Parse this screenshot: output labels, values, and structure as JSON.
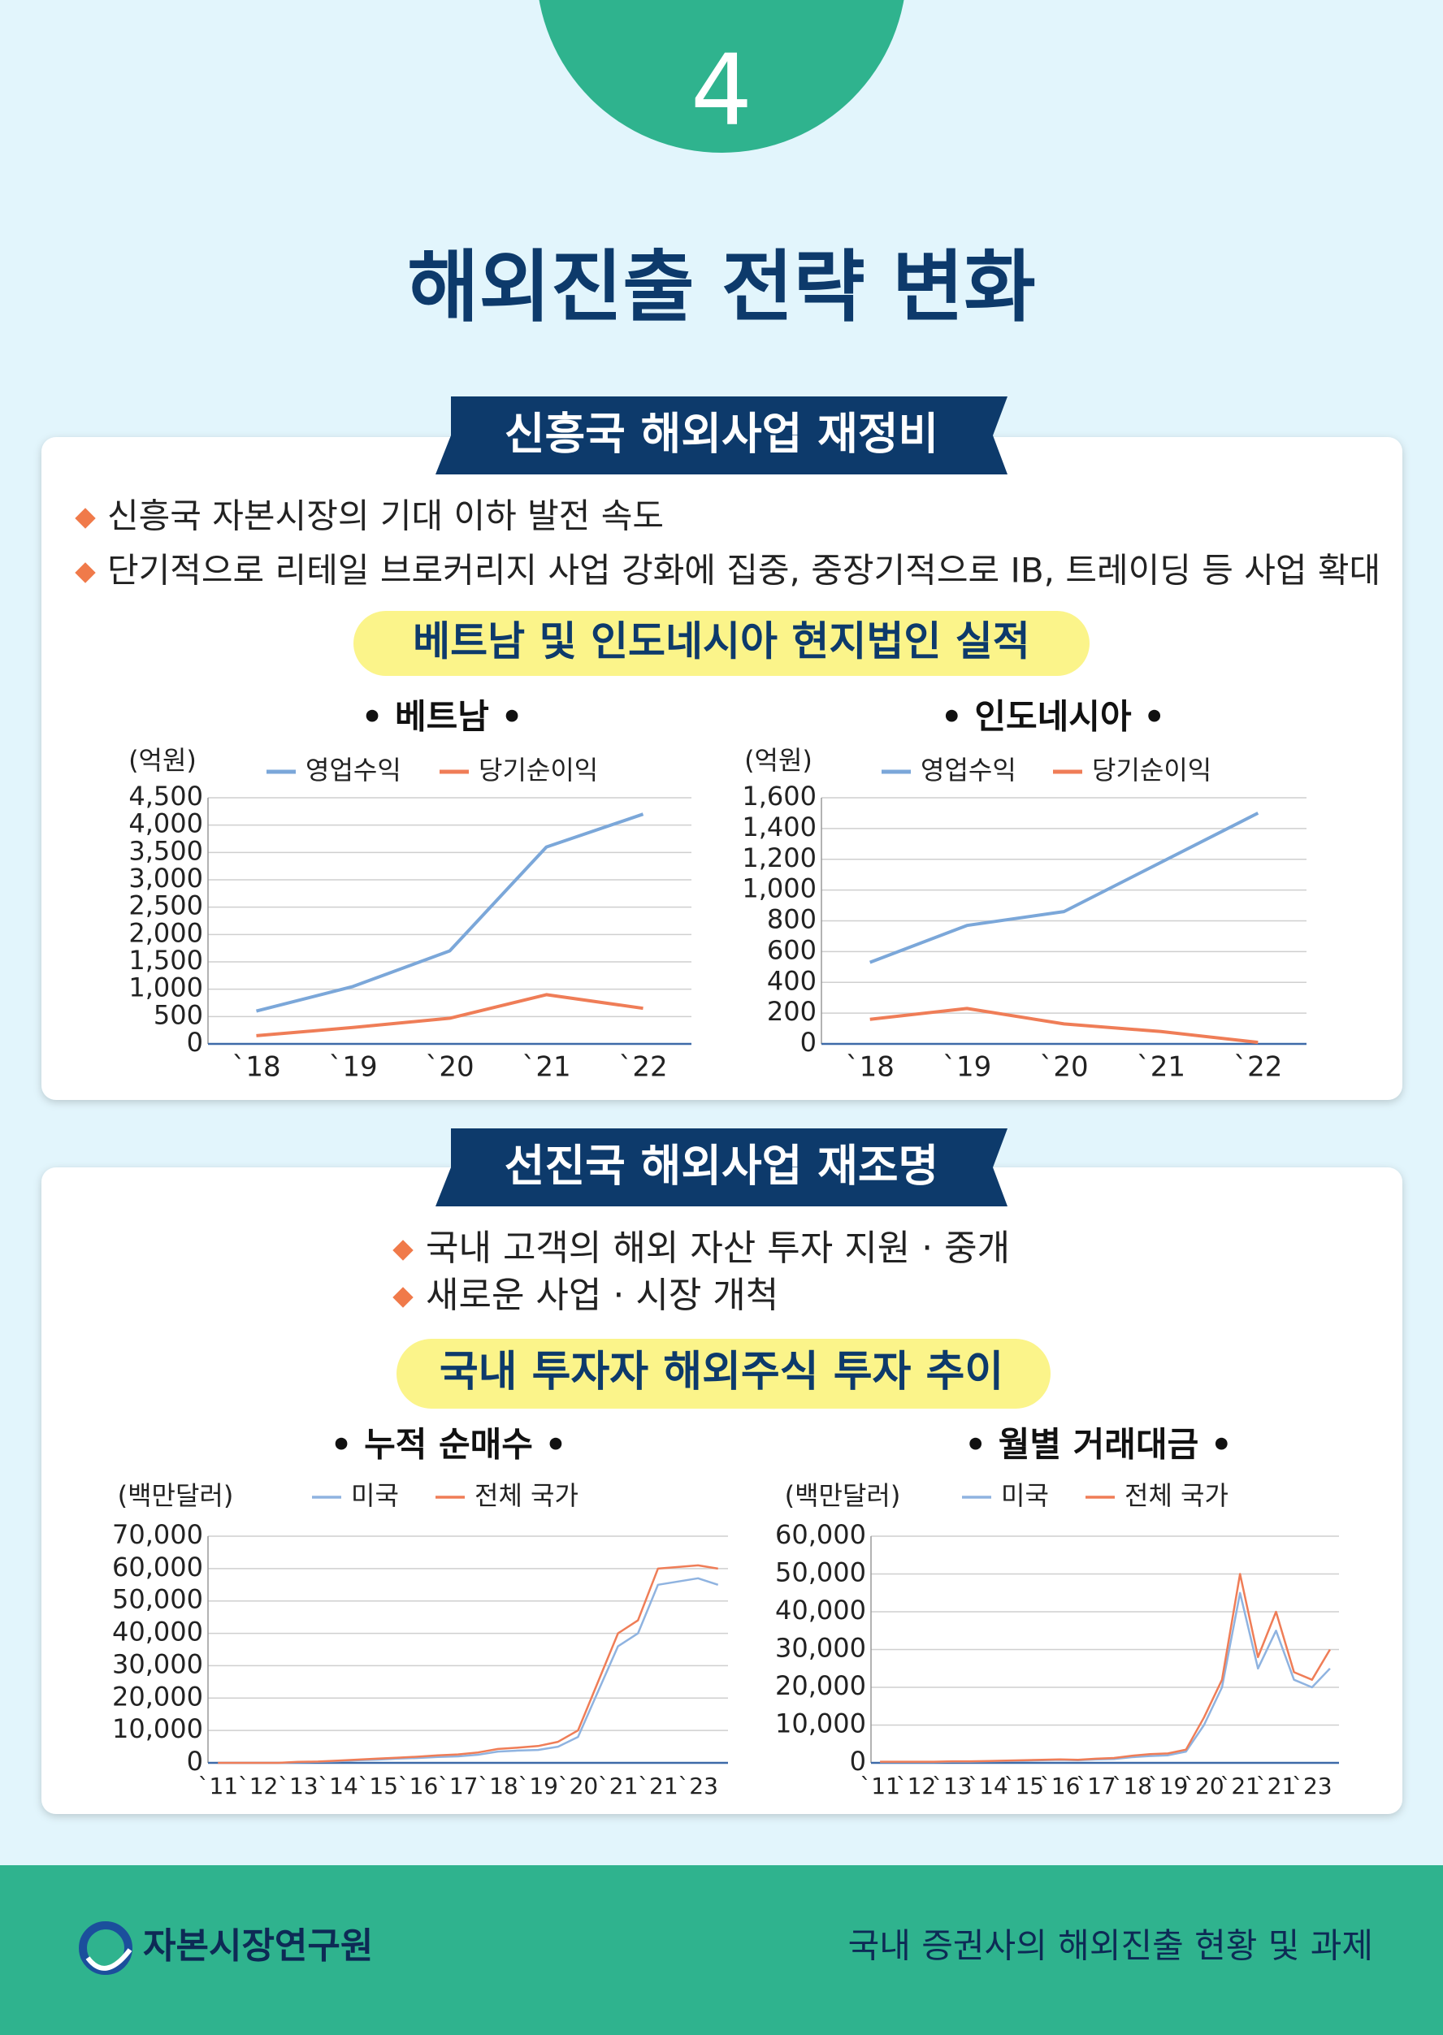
{
  "header": {
    "number": "4",
    "title": "해외진출 전략 변화"
  },
  "sections": [
    {
      "heading": "신흥국 해외사업 재정비",
      "bullets": [
        "신흥국 자본시장의 기대 이하 발전 속도",
        "단기적으로 리테일 브로커리지 사업 강화에 집중, 중장기적으로 IB, 트레이딩 등 사업 확대"
      ],
      "subheading": "베트남 및 인도네시아 현지법인 실적"
    },
    {
      "heading": "선진국 해외사업 재조명",
      "bullets": [
        "국내 고객의 해외 자산 투자 지원 · 중개",
        "새로운 사업 · 시장 개척"
      ],
      "subheading": "국내 투자자 해외주식 투자 추이"
    }
  ],
  "chart_data": [
    {
      "type": "line",
      "title": "• 베트남 •",
      "y_label": "(억원)",
      "categories": [
        "`18",
        "`19",
        "`20",
        "`21",
        "`22"
      ],
      "series": [
        {
          "name": "영업수익",
          "color": "#7ba7d9",
          "values": [
            600,
            1050,
            1700,
            3600,
            4200
          ]
        },
        {
          "name": "당기순이익",
          "color": "#ef7d57",
          "values": [
            150,
            300,
            470,
            900,
            650
          ]
        }
      ],
      "ylim": [
        0,
        4500
      ],
      "yticks": [
        0,
        500,
        {
          "value": 1000,
          "label": "1,000"
        },
        {
          "value": 1500,
          "label": "1,500"
        },
        {
          "value": 2000,
          "label": "2,000"
        },
        {
          "value": 2500,
          "label": "2,500"
        },
        {
          "value": 3000,
          "label": "3,000"
        },
        {
          "value": 3500,
          "label": "3,500"
        },
        {
          "value": 4000,
          "label": "4,000"
        },
        {
          "value": 4500,
          "label": "4,500"
        }
      ],
      "grid": true,
      "legend": "top"
    },
    {
      "type": "line",
      "title": "• 인도네시아 •",
      "y_label": "(억원)",
      "categories": [
        "`18",
        "`19",
        "`20",
        "`21",
        "`22"
      ],
      "series": [
        {
          "name": "영업수익",
          "color": "#7ba7d9",
          "values": [
            530,
            770,
            860,
            1180,
            1500
          ]
        },
        {
          "name": "당기순이익",
          "color": "#ef7d57",
          "values": [
            160,
            230,
            130,
            80,
            10
          ]
        }
      ],
      "ylim": [
        0,
        1600
      ],
      "yticks": [
        0,
        200,
        400,
        600,
        800,
        {
          "value": 1000,
          "label": "1,000"
        },
        {
          "value": 1200,
          "label": "1,200"
        },
        {
          "value": 1400,
          "label": "1,400"
        },
        {
          "value": 1600,
          "label": "1,600"
        }
      ],
      "grid": true,
      "legend": "top"
    },
    {
      "type": "line",
      "title": "• 누적 순매수 •",
      "y_label": "(백만달러)",
      "categories": [
        "`11",
        null,
        "`12",
        null,
        "`13",
        null,
        "`14",
        null,
        "`15",
        null,
        "`16",
        null,
        "`17",
        null,
        "`18",
        null,
        "`19",
        null,
        "`20",
        null,
        "`21",
        null,
        "`21",
        null,
        "`23",
        null
      ],
      "series": [
        {
          "name": "미국",
          "color": "#8fb3e0",
          "values": [
            0,
            0,
            0,
            0,
            200,
            300,
            500,
            800,
            1000,
            1300,
            1500,
            1800,
            2000,
            2500,
            3500,
            3800,
            4000,
            5000,
            8000,
            22000,
            36000,
            40000,
            55000,
            56000,
            57000,
            55000
          ]
        },
        {
          "name": "전체 국가",
          "color": "#ef7d57",
          "values": [
            0,
            0,
            0,
            0,
            300,
            400,
            700,
            1000,
            1300,
            1600,
            1900,
            2300,
            2600,
            3200,
            4300,
            4700,
            5200,
            6500,
            10000,
            25000,
            40000,
            44000,
            60000,
            60500,
            61000,
            60000
          ]
        }
      ],
      "ylim": [
        0,
        70000
      ],
      "yticks": [
        0,
        {
          "value": 10000,
          "label": "10,000"
        },
        {
          "value": 20000,
          "label": "20,000"
        },
        {
          "value": 30000,
          "label": "30,000"
        },
        {
          "value": 40000,
          "label": "40,000"
        },
        {
          "value": 50000,
          "label": "50,000"
        },
        {
          "value": 60000,
          "label": "60,000"
        },
        {
          "value": 70000,
          "label": "70,000"
        }
      ],
      "grid": true,
      "legend": "top"
    },
    {
      "type": "line",
      "title": "• 월별 거래대금 •",
      "y_label": "(백만달러)",
      "categories": [
        "`11",
        null,
        "`12",
        null,
        "`13",
        null,
        "`14",
        null,
        "`15",
        null,
        "`16",
        null,
        "`17",
        null,
        "`18",
        null,
        "`19",
        null,
        "`20",
        null,
        "`21",
        null,
        "`21",
        null,
        "`23",
        null
      ],
      "series": [
        {
          "name": "미국",
          "color": "#8fb3e0",
          "values": [
            200,
            200,
            200,
            200,
            300,
            300,
            400,
            500,
            600,
            700,
            800,
            700,
            900,
            1000,
            1500,
            1800,
            2000,
            3000,
            10000,
            20000,
            45000,
            25000,
            35000,
            22000,
            20000,
            25000
          ]
        },
        {
          "name": "전체 국가",
          "color": "#ef7d57",
          "values": [
            300,
            300,
            300,
            300,
            400,
            400,
            500,
            600,
            700,
            800,
            900,
            800,
            1100,
            1300,
            1900,
            2300,
            2500,
            3500,
            12000,
            22000,
            50000,
            28000,
            40000,
            24000,
            22000,
            30000
          ]
        }
      ],
      "ylim": [
        0,
        60000
      ],
      "yticks": [
        0,
        {
          "value": 10000,
          "label": "10,000"
        },
        {
          "value": 20000,
          "label": "20,000"
        },
        {
          "value": 30000,
          "label": "30,000"
        },
        {
          "value": 40000,
          "label": "40,000"
        },
        {
          "value": 50000,
          "label": "50,000"
        },
        {
          "value": 60000,
          "label": "60,000"
        }
      ],
      "grid": true,
      "legend": "top"
    }
  ],
  "footer": {
    "org": "자본시장연구원",
    "report": "국내 증권사의 해외진출 현황 및 과제"
  }
}
